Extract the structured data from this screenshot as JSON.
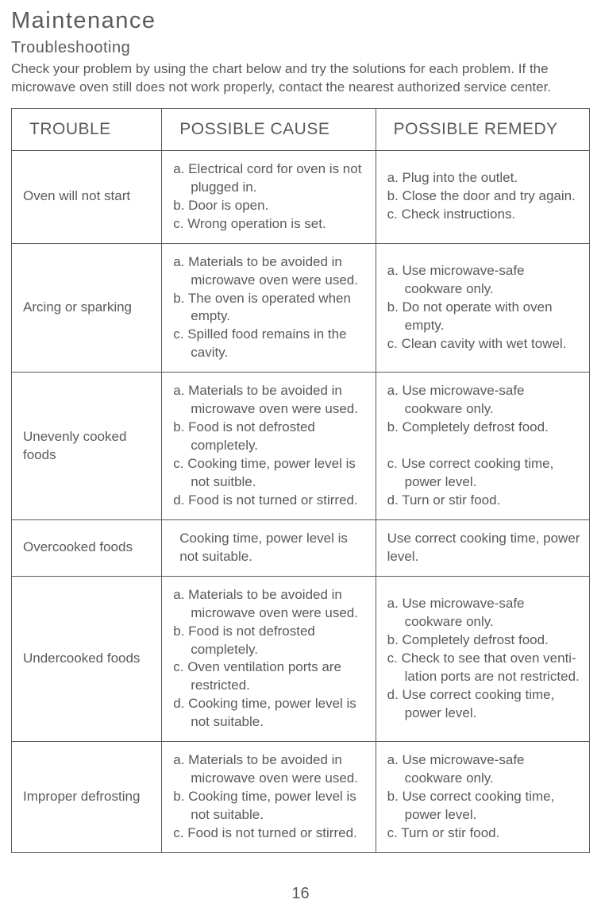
{
  "title": "Maintenance",
  "subtitle": "Troubleshooting",
  "intro": "Check your problem by using the chart below and try the solutions for each problem. If the microwave oven still does not work properly, contact the nearest authorized service center.",
  "headers": {
    "trouble": "TROUBLE",
    "cause": "POSSIBLE CAUSE",
    "remedy": "POSSIBLE REMEDY"
  },
  "rows": [
    {
      "trouble": "Oven will not start",
      "cause": [
        "a. Electrical cord for oven is not plugged in.",
        "b. Door is open.",
        "c. Wrong operation is set."
      ],
      "remedy": [
        "a. Plug into the outlet.",
        "b. Close the door and try again.",
        "c. Check instructions."
      ]
    },
    {
      "trouble": "Arcing or sparking",
      "cause": [
        "a. Materials to be avoided in microwave oven were used.",
        "b. The oven is operated when empty.",
        "c. Spilled food remains in the cavity."
      ],
      "remedy": [
        "a. Use microwave-safe cookware only.",
        "b. Do not operate with oven empty.",
        "c. Clean cavity with wet towel."
      ]
    },
    {
      "trouble": "Unevenly cooked foods",
      "cause": [
        "a. Materials to be avoided in microwave oven were used.",
        "b. Food is not defrosted completely.",
        "c. Cooking time, power level is not suitble.",
        "d. Food is not turned or stirred."
      ],
      "remedy": [
        "a. Use microwave-safe cookware only.",
        "b. Completely defrost food.",
        "",
        "c. Use correct cooking time, power level.",
        "d. Turn or stir food."
      ]
    },
    {
      "trouble": "Overcooked foods",
      "cause_single": "Cooking time, power level is not suitable.",
      "remedy_single": "Use correct cooking time, power level."
    },
    {
      "trouble": "Undercooked foods",
      "cause": [
        "a. Materials to be avoided in microwave oven were used.",
        "b. Food is not defrosted completely.",
        "c. Oven ventilation ports are restricted.",
        "d. Cooking time, power level is not suitable."
      ],
      "remedy": [
        "a. Use microwave-safe cookware only.",
        "b. Completely defrost food.",
        "c. Check to see that oven venti-lation ports are not restricted.",
        "d. Use correct cooking time, power level."
      ]
    },
    {
      "trouble": "Improper defrosting",
      "cause": [
        "a. Materials to be avoided in microwave oven were used.",
        "b. Cooking time, power level is not suitable.",
        "c. Food is not turned or stirred."
      ],
      "remedy": [
        "a. Use microwave-safe cookware only.",
        "b. Use correct cooking time, power level.",
        "c. Turn or stir food."
      ]
    }
  ],
  "page_number": "16",
  "colors": {
    "text": "#5a5a5a",
    "border": "#5a5a5a",
    "background": "#ffffff"
  },
  "fontsizes": {
    "title": 29,
    "subtitle": 20,
    "body": 17,
    "header": 21,
    "pagenum": 20
  }
}
